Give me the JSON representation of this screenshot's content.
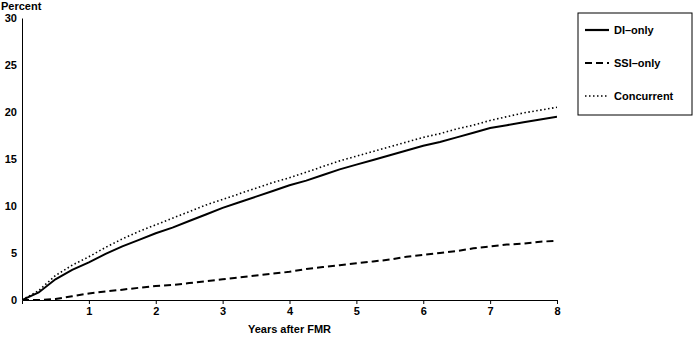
{
  "chart_data": {
    "type": "line",
    "y_label": "Percent",
    "x_label": "Years after FMR",
    "x": [
      0,
      0.25,
      0.5,
      0.75,
      1,
      1.25,
      1.5,
      1.75,
      2,
      2.25,
      2.5,
      2.75,
      3,
      3.25,
      3.5,
      3.75,
      4,
      4.25,
      4.5,
      4.75,
      5,
      5.25,
      5.5,
      5.75,
      6,
      6.25,
      6.5,
      6.75,
      7,
      7.25,
      7.5,
      7.75,
      8
    ],
    "series": [
      {
        "name": "DI–only",
        "color": "#000000",
        "line_style": "solid",
        "values": [
          0,
          0.8,
          2.2,
          3.2,
          4.0,
          4.9,
          5.7,
          6.4,
          7.1,
          7.7,
          8.4,
          9.1,
          9.8,
          10.4,
          11.0,
          11.6,
          12.2,
          12.7,
          13.3,
          13.9,
          14.4,
          14.9,
          15.4,
          15.9,
          16.4,
          16.8,
          17.3,
          17.8,
          18.3,
          18.6,
          18.9,
          19.2,
          19.5
        ]
      },
      {
        "name": "SSI–only",
        "color": "#000000",
        "line_style": "dashed",
        "values": [
          0,
          0,
          0.1,
          0.4,
          0.7,
          0.9,
          1.1,
          1.3,
          1.5,
          1.6,
          1.8,
          2.0,
          2.2,
          2.4,
          2.6,
          2.8,
          3.0,
          3.3,
          3.5,
          3.7,
          3.9,
          4.1,
          4.3,
          4.6,
          4.8,
          5.0,
          5.2,
          5.5,
          5.7,
          5.9,
          6.0,
          6.2,
          6.3
        ]
      },
      {
        "name": "Concurrent",
        "color": "#000000",
        "line_style": "dotted",
        "values": [
          0,
          1.0,
          2.6,
          3.7,
          4.6,
          5.6,
          6.5,
          7.3,
          8.0,
          8.7,
          9.4,
          10.1,
          10.7,
          11.3,
          11.9,
          12.5,
          13.0,
          13.6,
          14.2,
          14.8,
          15.3,
          15.8,
          16.3,
          16.8,
          17.3,
          17.7,
          18.2,
          18.6,
          19.1,
          19.5,
          19.9,
          20.2,
          20.5
        ]
      }
    ],
    "xlim": [
      0,
      8
    ],
    "xticks": [
      1,
      2,
      3,
      4,
      5,
      6,
      7,
      8
    ],
    "ylim": [
      0,
      30
    ],
    "yticks": [
      0,
      5,
      10,
      15,
      20,
      25,
      30
    ],
    "grid": false,
    "legend": "right"
  }
}
